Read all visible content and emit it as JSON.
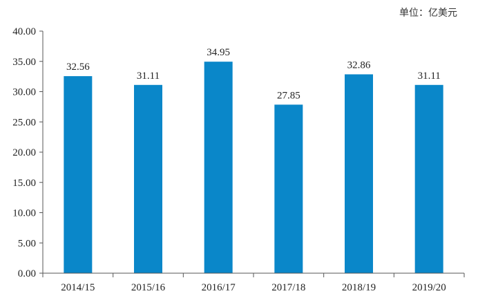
{
  "unit_label": "单位：亿美元",
  "colors": {
    "bar": "#0a87c9",
    "axis": "#555555",
    "text": "#222222"
  },
  "chart_data": {
    "type": "bar",
    "title": "",
    "xlabel": "",
    "ylabel": "",
    "unit": "单位：亿美元",
    "categories": [
      "2014/15",
      "2015/16",
      "2016/17",
      "2017/18",
      "2018/19",
      "2019/20"
    ],
    "values": [
      32.56,
      31.11,
      34.95,
      27.85,
      32.86,
      31.11
    ],
    "value_labels": [
      "32.56",
      "31.11",
      "34.95",
      "27.85",
      "32.86",
      "31.11"
    ],
    "ylim": [
      0,
      40
    ],
    "yticks": [
      "0.00",
      "5.00",
      "10.00",
      "15.00",
      "20.00",
      "25.00",
      "30.00",
      "35.00",
      "40.00"
    ],
    "grid": false,
    "legend": "none"
  }
}
